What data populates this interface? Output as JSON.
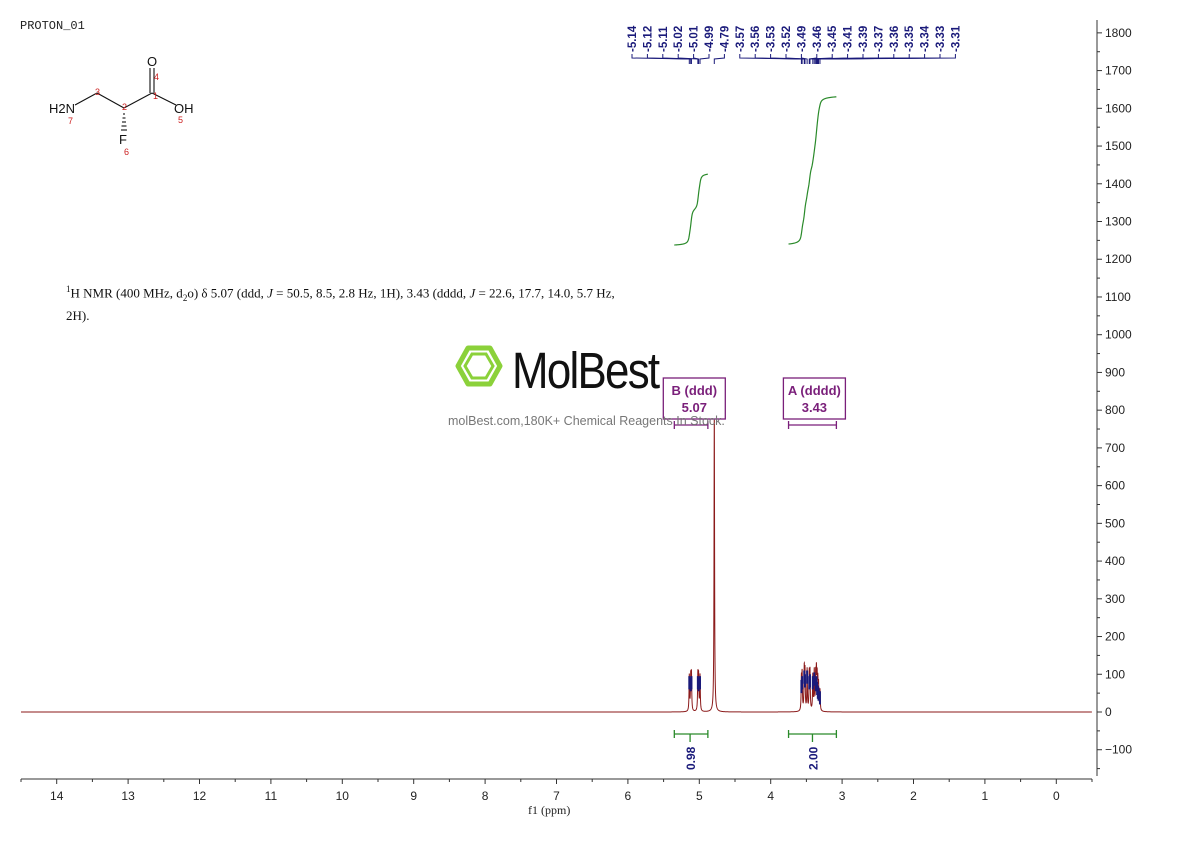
{
  "header": {
    "title": "PROTON_01"
  },
  "structure": {
    "atoms": {
      "o_top": "O",
      "oh": "OH",
      "nh2": "H2N",
      "f": "F"
    },
    "numbers": [
      "1",
      "2",
      "3",
      "4",
      "5",
      "6",
      "7"
    ]
  },
  "nmr_description": {
    "nucleus_sup": "1",
    "text_a": "H NMR (400 MHz, d",
    "solvent_sub": "2",
    "text_b": "o) δ 5.07 (ddd, ",
    "j1": "J",
    "text_c": " = 50.5, 8.5, 2.8 Hz, 1H), 3.43 (dddd, ",
    "j2": "J",
    "text_d": " = 22.6, 17.7, 14.0, 5.7 Hz, 2H)."
  },
  "watermark": {
    "brand": "MolBest",
    "tagline": "molBest.com,180K+ Chemical Reagents In Stock.",
    "colors": {
      "logo": "#8bd13a"
    }
  },
  "chart_data": {
    "type": "line",
    "xlabel": "f1 (ppm)",
    "xlim": [
      14.5,
      -0.5
    ],
    "x_reversed": true,
    "ylim": [
      -180,
      1830
    ],
    "x_ticks": [
      14,
      13,
      12,
      11,
      10,
      9,
      8,
      7,
      6,
      5,
      4,
      3,
      2,
      1,
      0
    ],
    "y_ticks": [
      -100,
      0,
      100,
      200,
      300,
      400,
      500,
      600,
      700,
      800,
      900,
      1000,
      1100,
      1200,
      1300,
      1400,
      1500,
      1600,
      1700,
      1800
    ],
    "y_tick_labels": [
      "−100",
      "0",
      "100",
      "200",
      "300",
      "400",
      "500",
      "600",
      "700",
      "800",
      "900",
      "1000",
      "1100",
      "1200",
      "1300",
      "1400",
      "1500",
      "1600",
      "1700",
      "1800"
    ],
    "spectrum_peaks": [
      {
        "ppm": 5.14,
        "height": 95
      },
      {
        "ppm": 5.12,
        "height": 90
      },
      {
        "ppm": 5.11,
        "height": 95
      },
      {
        "ppm": 5.02,
        "height": 95
      },
      {
        "ppm": 5.01,
        "height": 90
      },
      {
        "ppm": 4.99,
        "height": 95
      },
      {
        "ppm": 4.79,
        "height": 800
      },
      {
        "ppm": 3.57,
        "height": 85
      },
      {
        "ppm": 3.56,
        "height": 95
      },
      {
        "ppm": 3.53,
        "height": 110
      },
      {
        "ppm": 3.52,
        "height": 100
      },
      {
        "ppm": 3.49,
        "height": 110
      },
      {
        "ppm": 3.46,
        "height": 95
      },
      {
        "ppm": 3.45,
        "height": 100
      },
      {
        "ppm": 3.41,
        "height": 95
      },
      {
        "ppm": 3.39,
        "height": 105
      },
      {
        "ppm": 3.37,
        "height": 90
      },
      {
        "ppm": 3.36,
        "height": 95
      },
      {
        "ppm": 3.35,
        "height": 80
      },
      {
        "ppm": 3.34,
        "height": 70
      },
      {
        "ppm": 3.33,
        "height": 65
      },
      {
        "ppm": 3.31,
        "height": 55
      }
    ],
    "peak_labels": [
      "5.14",
      "5.12",
      "5.11",
      "5.02",
      "5.01",
      "4.99",
      "4.79",
      "3.57",
      "3.56",
      "3.53",
      "3.52",
      "3.49",
      "3.46",
      "3.45",
      "3.41",
      "3.39",
      "3.37",
      "3.36",
      "3.35",
      "3.34",
      "3.33",
      "3.31"
    ],
    "multiplets": [
      {
        "name": "B (ddd)",
        "shift": "5.07",
        "range": [
          5.35,
          4.88
        ]
      },
      {
        "name": "A (dddd)",
        "shift": "3.43",
        "range": [
          3.75,
          3.08
        ]
      }
    ],
    "integrals": [
      {
        "value": "0.98",
        "range": [
          5.35,
          4.88
        ],
        "curve_start": 1235,
        "curve_end": 1430
      },
      {
        "value": "2.00",
        "range": [
          3.75,
          3.08
        ],
        "curve_start": 1235,
        "curve_end": 1635
      }
    ],
    "colors": {
      "spectrum": "#8b1a1a",
      "peak_label": "#1a1a7a",
      "multiplet": "#7a1f7a",
      "integral": "#2a8a2a"
    }
  }
}
